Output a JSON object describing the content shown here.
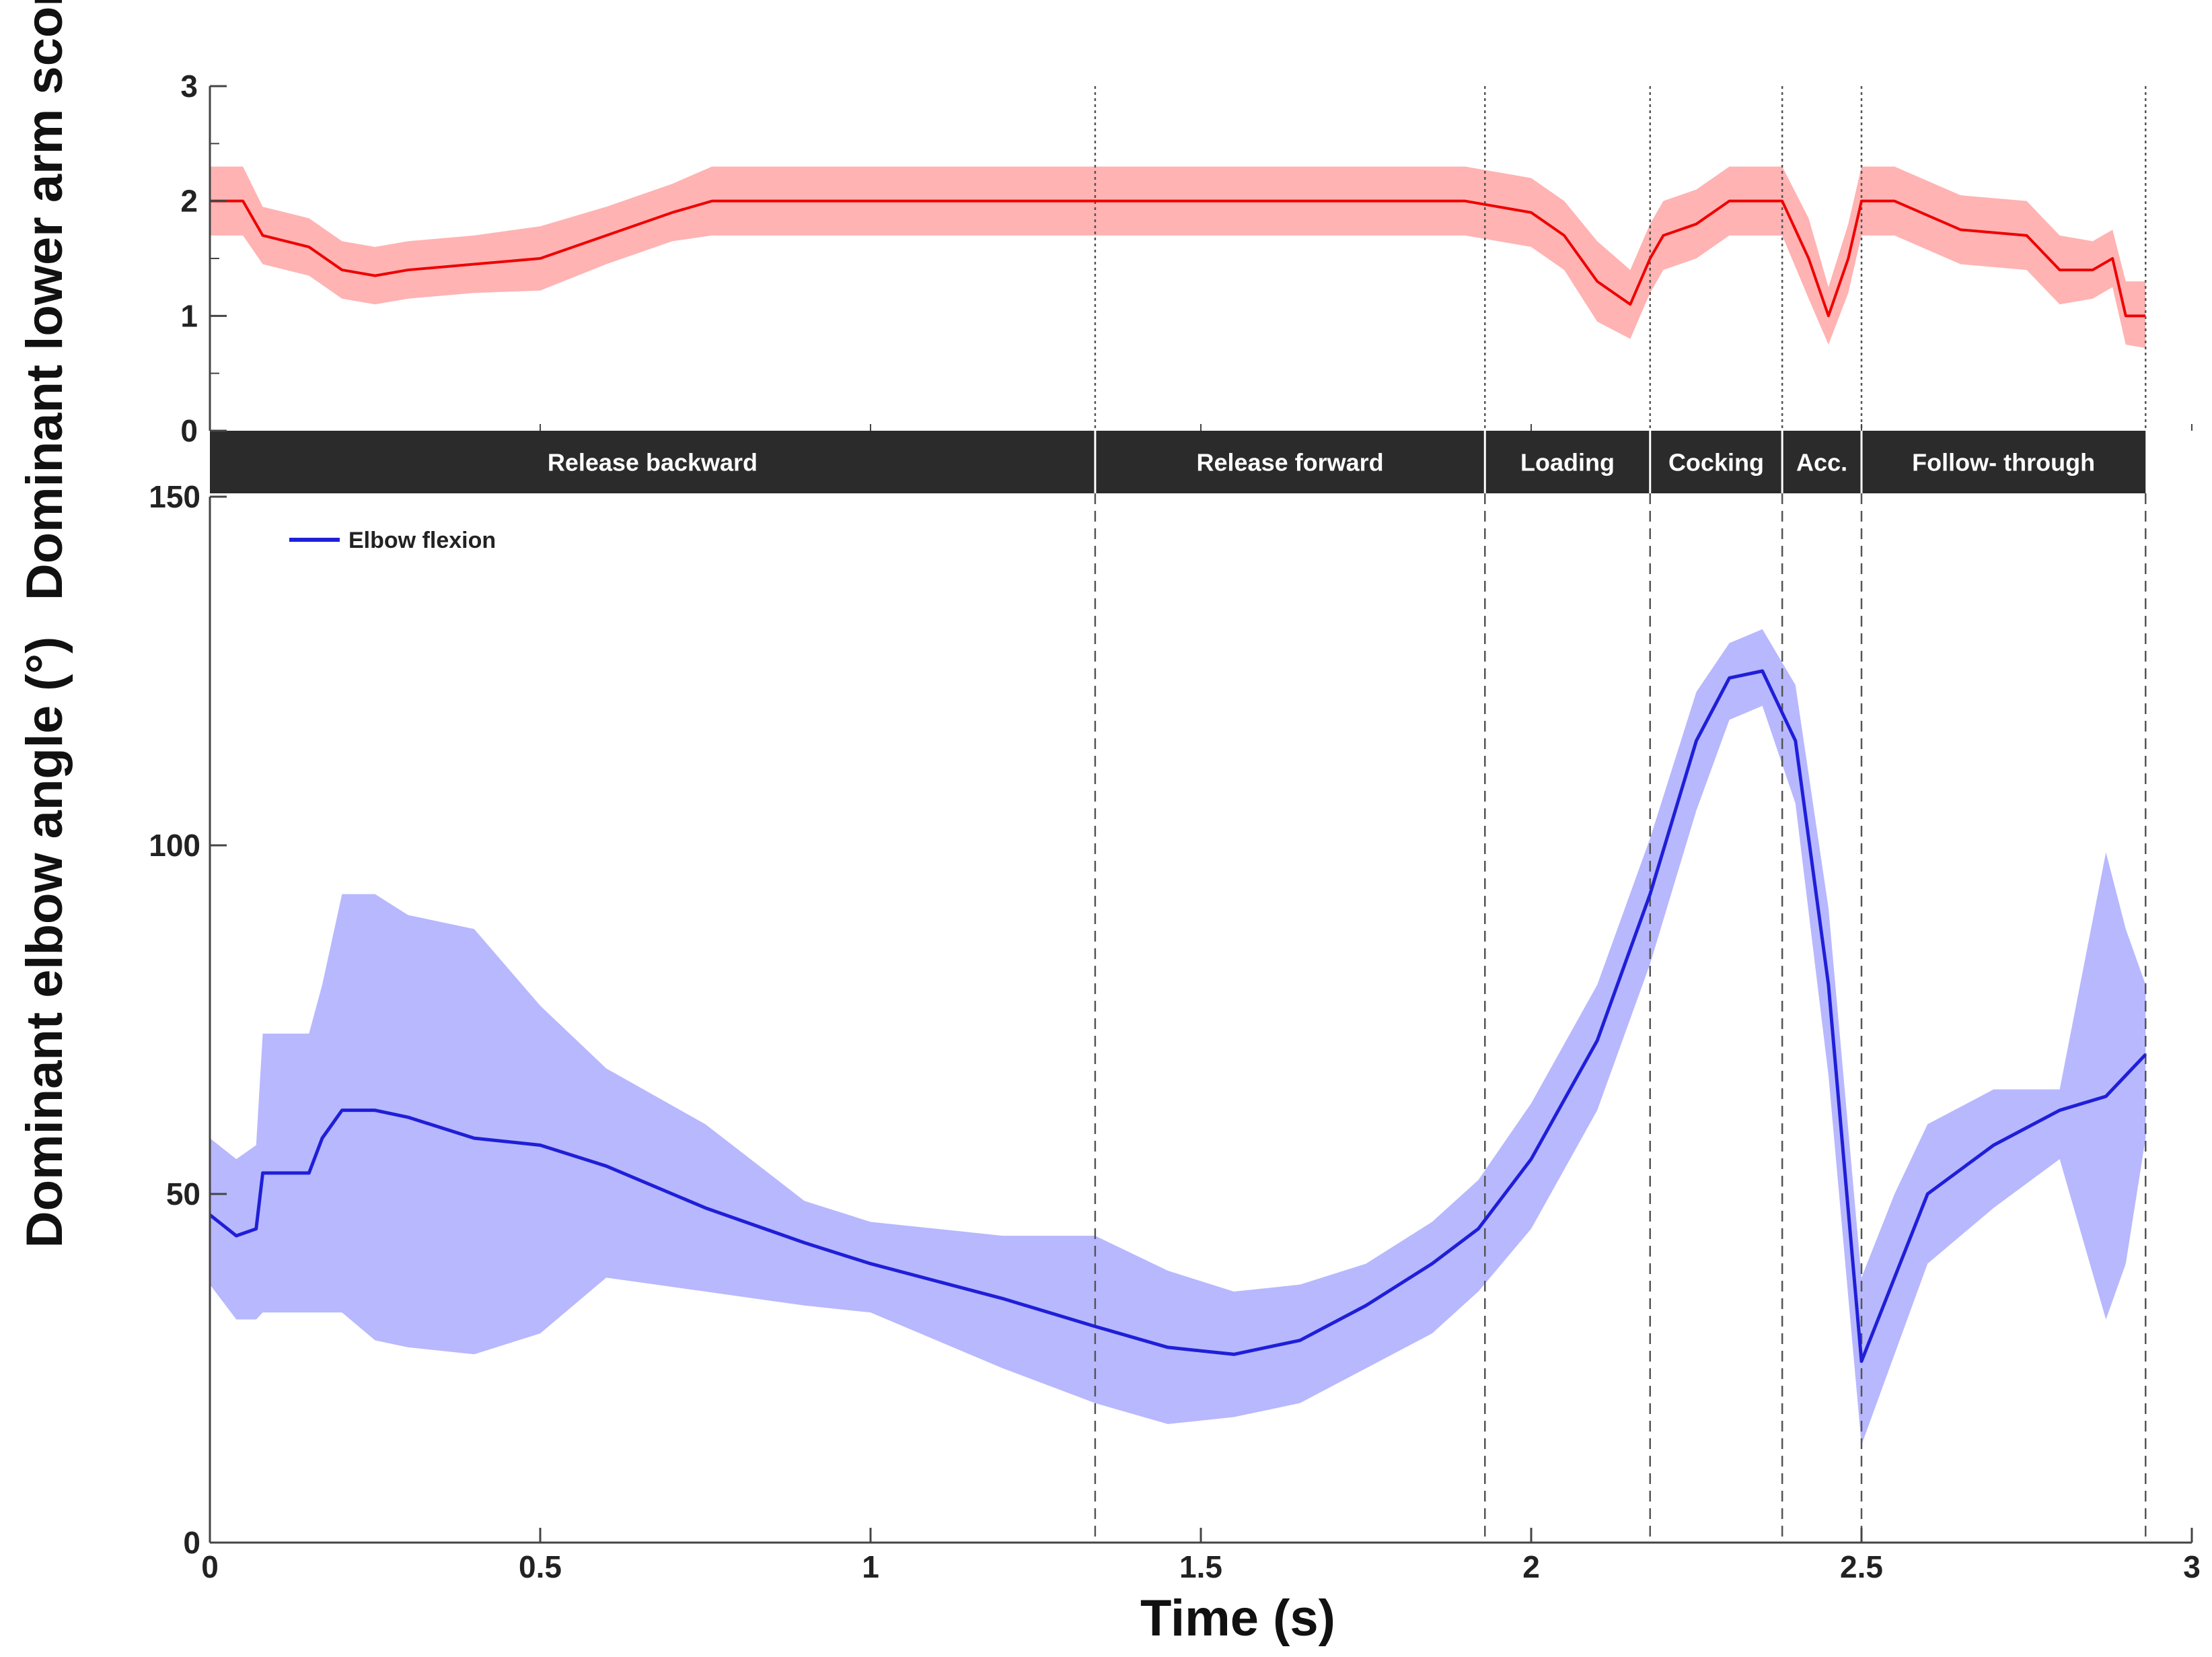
{
  "chart_data": [
    {
      "type": "line",
      "panel": "top",
      "ylabel": "Dominant lower arm score",
      "ylim": [
        0,
        3
      ],
      "yticks": [
        "0",
        "1",
        "2",
        "3"
      ],
      "line_color": "#ee0000",
      "band_color": "#ffb3b3",
      "series": [
        {
          "name": "Dominant lower arm score",
          "x": [
            0,
            0.05,
            0.08,
            0.15,
            0.2,
            0.25,
            0.3,
            0.4,
            0.5,
            0.6,
            0.7,
            0.76,
            1.0,
            1.5,
            1.9,
            2.0,
            2.05,
            2.1,
            2.15,
            2.18,
            2.2,
            2.25,
            2.3,
            2.38,
            2.42,
            2.45,
            2.48,
            2.5,
            2.55,
            2.65,
            2.75,
            2.8,
            2.85,
            2.88,
            2.9,
            2.93
          ],
          "mean": [
            2.0,
            2.0,
            1.7,
            1.6,
            1.4,
            1.35,
            1.4,
            1.45,
            1.5,
            1.7,
            1.9,
            2.0,
            2.0,
            2.0,
            2.0,
            1.9,
            1.7,
            1.3,
            1.1,
            1.5,
            1.7,
            1.8,
            2.0,
            2.0,
            1.5,
            1.0,
            1.5,
            2.0,
            2.0,
            1.75,
            1.7,
            1.4,
            1.4,
            1.5,
            1.0,
            1.0
          ],
          "upper": [
            2.3,
            2.3,
            1.95,
            1.85,
            1.65,
            1.6,
            1.65,
            1.7,
            1.78,
            1.95,
            2.15,
            2.3,
            2.3,
            2.3,
            2.3,
            2.2,
            2.0,
            1.65,
            1.4,
            1.8,
            2.0,
            2.1,
            2.3,
            2.3,
            1.85,
            1.25,
            1.8,
            2.3,
            2.3,
            2.05,
            2.0,
            1.7,
            1.65,
            1.75,
            1.3,
            1.3
          ],
          "lower": [
            1.7,
            1.7,
            1.45,
            1.35,
            1.15,
            1.1,
            1.15,
            1.2,
            1.22,
            1.45,
            1.65,
            1.7,
            1.7,
            1.7,
            1.7,
            1.6,
            1.4,
            0.95,
            0.8,
            1.2,
            1.4,
            1.5,
            1.7,
            1.7,
            1.15,
            0.75,
            1.2,
            1.7,
            1.7,
            1.45,
            1.4,
            1.1,
            1.15,
            1.25,
            0.75,
            0.72
          ]
        }
      ]
    },
    {
      "type": "line",
      "panel": "bottom",
      "ylabel": "Dominant elbow angle (°)",
      "xlabel": "Time (s)",
      "xlim": [
        0,
        3
      ],
      "ylim": [
        0,
        150
      ],
      "xticks": [
        "0",
        "0.5",
        "1",
        "1.5",
        "2",
        "2.5",
        "3"
      ],
      "yticks": [
        "0",
        "50",
        "100",
        "150"
      ],
      "legend": "Elbow flexion",
      "line_color": "#1f1fd8",
      "band_color": "#b8b8ff",
      "series": [
        {
          "name": "Elbow flexion",
          "x": [
            0,
            0.04,
            0.07,
            0.08,
            0.15,
            0.17,
            0.2,
            0.25,
            0.3,
            0.4,
            0.5,
            0.6,
            0.75,
            0.9,
            1.0,
            1.2,
            1.34,
            1.45,
            1.55,
            1.65,
            1.75,
            1.85,
            1.92,
            2.0,
            2.1,
            2.18,
            2.25,
            2.3,
            2.35,
            2.4,
            2.45,
            2.5,
            2.55,
            2.6,
            2.7,
            2.8,
            2.87,
            2.9,
            2.93
          ],
          "mean": [
            47,
            44,
            45,
            53,
            53,
            58,
            62,
            62,
            61,
            58,
            57,
            54,
            48,
            43,
            40,
            35,
            31,
            28,
            27,
            29,
            34,
            40,
            45,
            55,
            72,
            93,
            115,
            124,
            125,
            115,
            80,
            26,
            38,
            50,
            57,
            62,
            64,
            67,
            70
          ],
          "upper": [
            58,
            55,
            57,
            73,
            73,
            80,
            93,
            93,
            90,
            88,
            77,
            68,
            60,
            49,
            46,
            44,
            44,
            39,
            36,
            37,
            40,
            46,
            52,
            63,
            80,
            101,
            122,
            129,
            131,
            123,
            91,
            38,
            50,
            60,
            65,
            65,
            99,
            88,
            80
          ],
          "lower": [
            37,
            32,
            32,
            33,
            33,
            33,
            33,
            29,
            28,
            27,
            30,
            38,
            36,
            34,
            33,
            25,
            20,
            17,
            18,
            20,
            25,
            30,
            36,
            45,
            62,
            83,
            105,
            118,
            120,
            106,
            67,
            14,
            27,
            40,
            48,
            55,
            32,
            40,
            58
          ]
        }
      ]
    }
  ],
  "phases": {
    "boundaries": [
      0,
      1.34,
      1.93,
      2.18,
      2.38,
      2.5,
      2.93
    ],
    "labels": [
      "Release backward",
      "Release forward",
      "Loading",
      "Cocking",
      "Acc.",
      "Follow- through"
    ]
  }
}
